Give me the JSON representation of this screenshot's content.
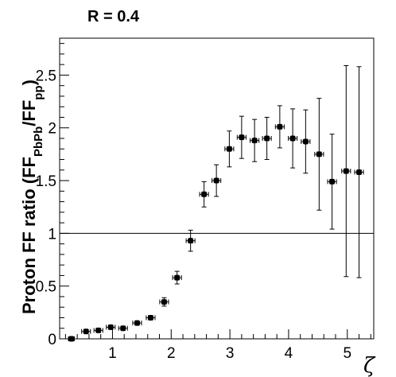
{
  "chart_data": {
    "type": "scatter",
    "title": "R = 0.4",
    "ylabel_parts": {
      "prefix": "Proton FF ratio (FF",
      "sub1": "PbPb",
      "mid": "/FF",
      "sub2": "pp",
      "suffix": ")"
    },
    "xlabel": "ζ",
    "xlim": [
      0.1,
      5.45
    ],
    "ylim": [
      0,
      2.85
    ],
    "x_ticks": [
      1,
      2,
      3,
      4,
      5
    ],
    "x_tick_labels": [
      "1",
      "2",
      "3",
      "4",
      "5"
    ],
    "y_ticks": [
      0,
      0.5,
      1,
      1.5,
      2,
      2.5
    ],
    "y_tick_labels": [
      "0",
      "0.5",
      "1",
      "1.5",
      "2",
      "2.5"
    ],
    "reference_line": 1,
    "points": [
      {
        "x": 0.3,
        "y": 0.0,
        "xerr": 0.05,
        "yerr": 0.0
      },
      {
        "x": 0.55,
        "y": 0.07,
        "xerr": 0.075,
        "yerr": 0.0
      },
      {
        "x": 0.76,
        "y": 0.08,
        "xerr": 0.075,
        "yerr": 0.0
      },
      {
        "x": 0.97,
        "y": 0.11,
        "xerr": 0.075,
        "yerr": 0.0
      },
      {
        "x": 1.18,
        "y": 0.1,
        "xerr": 0.075,
        "yerr": 0.0
      },
      {
        "x": 1.42,
        "y": 0.15,
        "xerr": 0.075,
        "yerr": 0.0
      },
      {
        "x": 1.65,
        "y": 0.2,
        "xerr": 0.075,
        "yerr": 0.02
      },
      {
        "x": 1.88,
        "y": 0.35,
        "xerr": 0.075,
        "yerr": 0.04
      },
      {
        "x": 2.1,
        "y": 0.58,
        "xerr": 0.075,
        "yerr": 0.06
      },
      {
        "x": 2.33,
        "y": 0.93,
        "xerr": 0.075,
        "yerr": 0.1
      },
      {
        "x": 2.56,
        "y": 1.37,
        "xerr": 0.075,
        "yerr": 0.12
      },
      {
        "x": 2.77,
        "y": 1.5,
        "xerr": 0.075,
        "yerr": 0.15
      },
      {
        "x": 2.99,
        "y": 1.8,
        "xerr": 0.075,
        "yerr": 0.17
      },
      {
        "x": 3.2,
        "y": 1.91,
        "xerr": 0.075,
        "yerr": 0.2
      },
      {
        "x": 3.42,
        "y": 1.88,
        "xerr": 0.075,
        "yerr": 0.2
      },
      {
        "x": 3.63,
        "y": 1.9,
        "xerr": 0.075,
        "yerr": 0.2
      },
      {
        "x": 3.85,
        "y": 2.01,
        "xerr": 0.075,
        "yerr": 0.2
      },
      {
        "x": 4.07,
        "y": 1.9,
        "xerr": 0.075,
        "yerr": 0.28
      },
      {
        "x": 4.29,
        "y": 1.87,
        "xerr": 0.075,
        "yerr": 0.3
      },
      {
        "x": 4.52,
        "y": 1.75,
        "xerr": 0.075,
        "yerr": 0.53
      },
      {
        "x": 4.74,
        "y": 1.49,
        "xerr": 0.075,
        "yerr": 0.45
      },
      {
        "x": 4.98,
        "y": 1.59,
        "xerr": 0.075,
        "yerr": 1.0
      },
      {
        "x": 5.2,
        "y": 1.58,
        "xerr": 0.075,
        "yerr": 1.0
      }
    ],
    "grid": false,
    "legend": "none"
  }
}
